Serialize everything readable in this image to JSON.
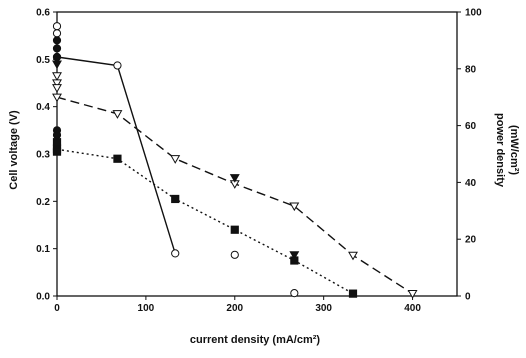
{
  "chart_data": {
    "type": "line",
    "xlabel": "current density (mA/cm²)",
    "ylabel_left": "Cell voltage (V)",
    "ylabel_right_line1": "power density",
    "ylabel_right_line2": "(mW/cm²)",
    "xlim": [
      0,
      450
    ],
    "ylim_left": [
      0,
      0.6
    ],
    "ylim_right": [
      0,
      100
    ],
    "x_ticks": [
      0,
      100,
      200,
      300,
      400
    ],
    "y_left_ticks": [
      0.0,
      0.1,
      0.2,
      0.3,
      0.4,
      0.5,
      0.6
    ],
    "y_right_ticks": [
      0,
      20,
      40,
      60,
      80,
      100
    ],
    "grid": false,
    "series": [
      {
        "marker": "open-circle",
        "line": "solid",
        "line_points": [
          [
            0,
            0.505
          ],
          [
            68,
            0.487
          ],
          [
            133,
            0.09
          ]
        ],
        "extra_points": [
          [
            0,
            0.57
          ],
          [
            0,
            0.555
          ],
          [
            200,
            0.087
          ],
          [
            267,
            0.006
          ]
        ]
      },
      {
        "marker": "filled-circle",
        "line": "none",
        "extra_points": [
          [
            0,
            0.54
          ],
          [
            0,
            0.523
          ],
          [
            0,
            0.505
          ],
          [
            0,
            0.35
          ],
          [
            0,
            0.34
          ],
          [
            0,
            0.32
          ],
          [
            0,
            0.31
          ]
        ]
      },
      {
        "marker": "open-triangle-down",
        "line": "dashed",
        "line_points": [
          [
            0,
            0.42
          ],
          [
            68,
            0.385
          ],
          [
            133,
            0.29
          ],
          [
            200,
            0.237
          ],
          [
            267,
            0.19
          ],
          [
            333,
            0.086
          ],
          [
            400,
            0.005
          ]
        ],
        "extra_points": [
          [
            0,
            0.465
          ],
          [
            0,
            0.45
          ],
          [
            0,
            0.44
          ]
        ]
      },
      {
        "marker": "filled-triangle-down",
        "line": "none",
        "extra_points": [
          [
            0,
            0.49
          ],
          [
            200,
            0.25
          ],
          [
            267,
            0.087
          ]
        ]
      },
      {
        "marker": "filled-square",
        "line": "dotted",
        "line_points": [
          [
            0,
            0.31
          ],
          [
            68,
            0.29
          ],
          [
            133,
            0.205
          ],
          [
            200,
            0.14
          ],
          [
            267,
            0.075
          ],
          [
            333,
            0.005
          ]
        ],
        "extra_points": [
          [
            0,
            0.325
          ],
          [
            0,
            0.305
          ]
        ]
      }
    ]
  }
}
